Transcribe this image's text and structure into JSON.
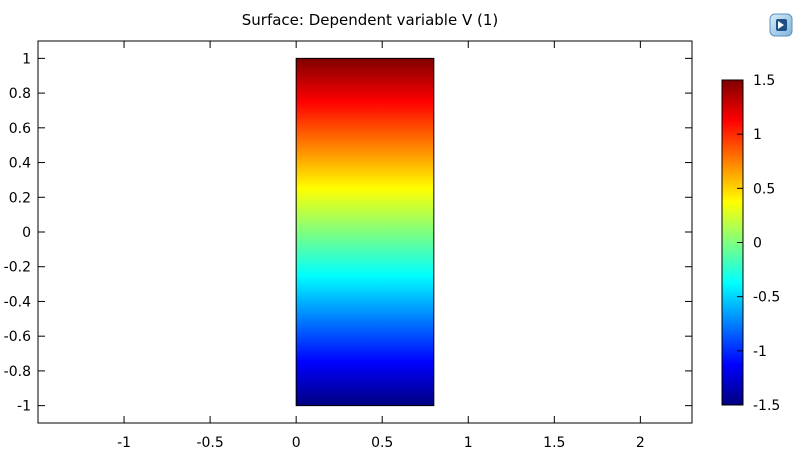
{
  "chart_data": {
    "type": "heatmap",
    "title": "Surface: Dependent variable V (1)",
    "xlabel": "",
    "ylabel": "",
    "xlim": [
      -1.5,
      2.3
    ],
    "ylim": [
      -1.1,
      1.1
    ],
    "x_ticks": [
      "-1",
      "-0.5",
      "0",
      "0.5",
      "1",
      "1.5",
      "2"
    ],
    "y_ticks": [
      "1",
      "0.8",
      "0.6",
      "0.4",
      "0.2",
      "0",
      "-0.2",
      "-0.4",
      "-0.6",
      "-0.8",
      "-1"
    ],
    "x_tick_values": [
      -1,
      -0.5,
      0,
      0.5,
      1,
      1.5,
      2
    ],
    "y_tick_values": [
      1,
      0.8,
      0.6,
      0.4,
      0.2,
      0,
      -0.2,
      -0.4,
      -0.6,
      -0.8,
      -1
    ],
    "domain": {
      "x": [
        0,
        0.8
      ],
      "y": [
        -1,
        1
      ]
    },
    "colorbar": {
      "range": [
        -1.5,
        1.5
      ],
      "tick_labels": [
        "1.5",
        "1",
        "0.5",
        "0",
        "-0.5",
        "-1",
        "-1.5"
      ],
      "tick_values": [
        1.5,
        1,
        0.5,
        0,
        -0.5,
        -1,
        -1.5
      ],
      "colormap": "rainbow"
    },
    "colormap_stops": [
      "#00007f",
      "#0000ff",
      "#007fff",
      "#00ffff",
      "#7fff7f",
      "#ffff00",
      "#ff7f00",
      "#ff0000",
      "#7f0000"
    ],
    "grid": false,
    "legend": "colorbar-right"
  },
  "toolbar": {
    "icon": "comsol-logo-icon"
  }
}
